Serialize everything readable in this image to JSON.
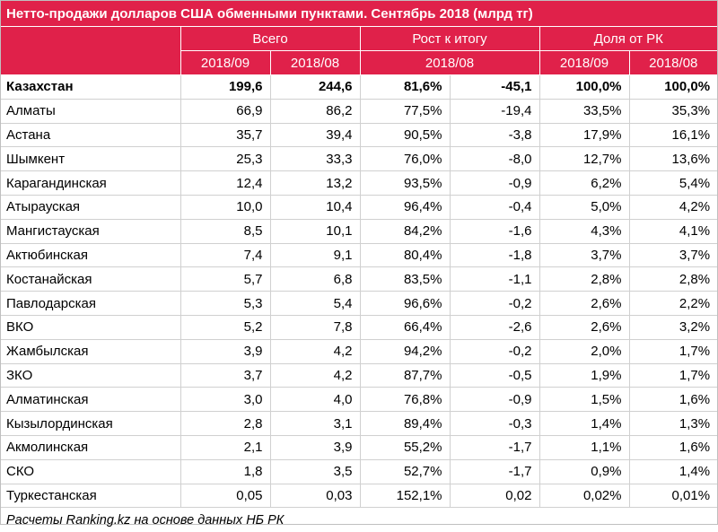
{
  "title": "Нетто-продажи долларов США обменными пунктами. Сентябрь 2018 (млрд тг)",
  "headers": {
    "group_total": "Всего",
    "group_growth": "Рост к итогу",
    "group_share": "Доля от РК",
    "sub_2018_09_a": "2018/09",
    "sub_2018_08_a": "2018/08",
    "sub_growth": "2018/08",
    "sub_2018_09_b": "2018/09",
    "sub_2018_08_b": "2018/08"
  },
  "rows": [
    {
      "name": "Казахстан",
      "v1": "199,6",
      "v2": "244,6",
      "g1": "81,6%",
      "g2": "-45,1",
      "s1": "100,0%",
      "s2": "100,0%"
    },
    {
      "name": "Алматы",
      "v1": "66,9",
      "v2": "86,2",
      "g1": "77,5%",
      "g2": "-19,4",
      "s1": "33,5%",
      "s2": "35,3%"
    },
    {
      "name": "Астана",
      "v1": "35,7",
      "v2": "39,4",
      "g1": "90,5%",
      "g2": "-3,8",
      "s1": "17,9%",
      "s2": "16,1%"
    },
    {
      "name": "Шымкент",
      "v1": "25,3",
      "v2": "33,3",
      "g1": "76,0%",
      "g2": "-8,0",
      "s1": "12,7%",
      "s2": "13,6%"
    },
    {
      "name": "Карагандинская",
      "v1": "12,4",
      "v2": "13,2",
      "g1": "93,5%",
      "g2": "-0,9",
      "s1": "6,2%",
      "s2": "5,4%"
    },
    {
      "name": "Атырауская",
      "v1": "10,0",
      "v2": "10,4",
      "g1": "96,4%",
      "g2": "-0,4",
      "s1": "5,0%",
      "s2": "4,2%"
    },
    {
      "name": "Мангистауская",
      "v1": "8,5",
      "v2": "10,1",
      "g1": "84,2%",
      "g2": "-1,6",
      "s1": "4,3%",
      "s2": "4,1%"
    },
    {
      "name": "Актюбинская",
      "v1": "7,4",
      "v2": "9,1",
      "g1": "80,4%",
      "g2": "-1,8",
      "s1": "3,7%",
      "s2": "3,7%"
    },
    {
      "name": "Костанайская",
      "v1": "5,7",
      "v2": "6,8",
      "g1": "83,5%",
      "g2": "-1,1",
      "s1": "2,8%",
      "s2": "2,8%"
    },
    {
      "name": "Павлодарская",
      "v1": "5,3",
      "v2": "5,4",
      "g1": "96,6%",
      "g2": "-0,2",
      "s1": "2,6%",
      "s2": "2,2%"
    },
    {
      "name": "ВКО",
      "v1": "5,2",
      "v2": "7,8",
      "g1": "66,4%",
      "g2": "-2,6",
      "s1": "2,6%",
      "s2": "3,2%"
    },
    {
      "name": "Жамбылская",
      "v1": "3,9",
      "v2": "4,2",
      "g1": "94,2%",
      "g2": "-0,2",
      "s1": "2,0%",
      "s2": "1,7%"
    },
    {
      "name": "ЗКО",
      "v1": "3,7",
      "v2": "4,2",
      "g1": "87,7%",
      "g2": "-0,5",
      "s1": "1,9%",
      "s2": "1,7%"
    },
    {
      "name": "Алматинская",
      "v1": "3,0",
      "v2": "4,0",
      "g1": "76,8%",
      "g2": "-0,9",
      "s1": "1,5%",
      "s2": "1,6%"
    },
    {
      "name": "Кызылординская",
      "v1": "2,8",
      "v2": "3,1",
      "g1": "89,4%",
      "g2": "-0,3",
      "s1": "1,4%",
      "s2": "1,3%"
    },
    {
      "name": "Акмолинская",
      "v1": "2,1",
      "v2": "3,9",
      "g1": "55,2%",
      "g2": "-1,7",
      "s1": "1,1%",
      "s2": "1,6%"
    },
    {
      "name": "СКО",
      "v1": "1,8",
      "v2": "3,5",
      "g1": "52,7%",
      "g2": "-1,7",
      "s1": "0,9%",
      "s2": "1,4%"
    },
    {
      "name": "Туркестанская",
      "v1": "0,05",
      "v2": "0,03",
      "g1": "152,1%",
      "g2": "0,02",
      "s1": "0,02%",
      "s2": "0,01%"
    }
  ],
  "footer": "Расчеты Ranking.kz на основе данных НБ РК",
  "colors": {
    "header_bg": "#e0214a",
    "header_text": "#ffffff"
  }
}
